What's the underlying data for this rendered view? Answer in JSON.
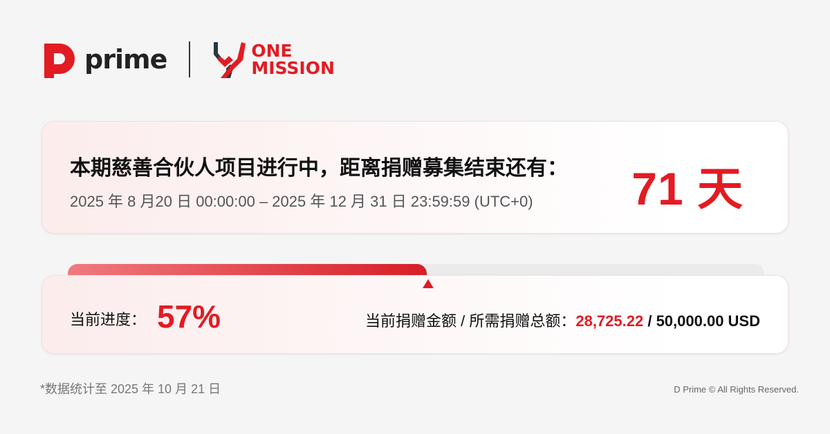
{
  "brand": {
    "prime_name": "prime",
    "partner_name_line1": "ONE",
    "partner_name_line2": "MISSION",
    "accent": "#e31b23"
  },
  "campaign": {
    "title": "本期慈善合伙人项目进行中，距离捐赠募集结束还有：",
    "period": "2025 年 8 月20 日 00:00:00 – 2025 年 12 月 31 日 23:59:59 (UTC+0)",
    "days_left": "71 天"
  },
  "progress": {
    "label": "当前进度：",
    "percent_text": "57%",
    "percent": 57,
    "amount_label": "当前捐赠金额 / 所需捐赠总额：",
    "current": "28,725.22",
    "separator": " / ",
    "target": "50,000.00 USD"
  },
  "footer": {
    "note": "*数据统计至 2025 年 10 月 21 日",
    "copyright": "D Prime © All Rights Reserved."
  }
}
